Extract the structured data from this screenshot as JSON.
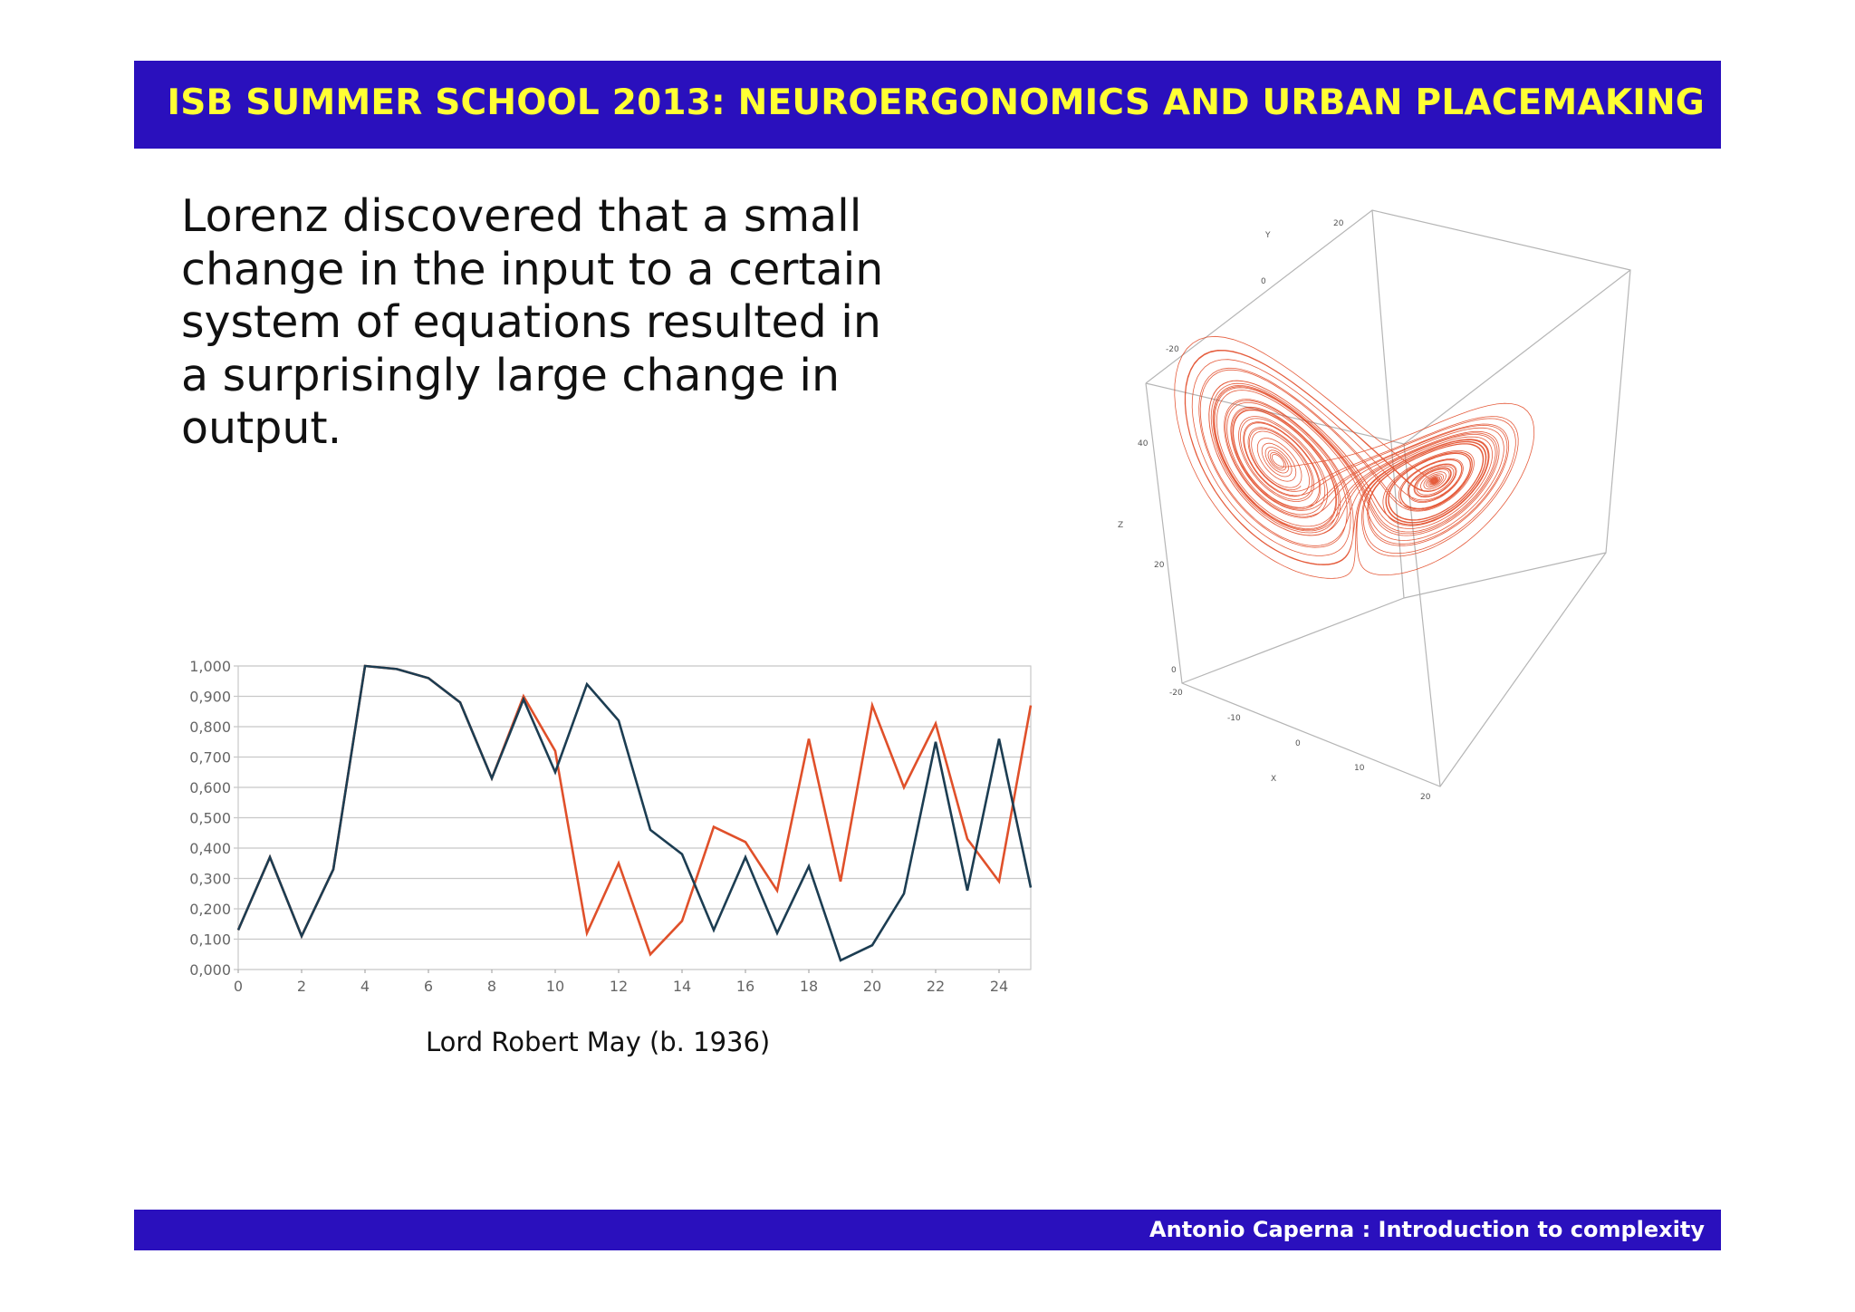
{
  "header": {
    "title": "ISB SUMMER SCHOOL 2013: NEUROERGONOMICS AND URBAN PLACEMAKING"
  },
  "body": {
    "lines": [
      "Lorenz discovered that a small",
      "change in the input to a certain",
      "system of equations resulted in",
      "a surprisingly large change in",
      "output."
    ]
  },
  "caption": "Lord Robert May (b. 1936)",
  "footer": {
    "text": "Antonio Caperna : Introduction to complexity"
  },
  "colors": {
    "bar": "#2a10bd",
    "title": "#ffff33",
    "series_dark": "#1c3d52",
    "series_red": "#e0502a",
    "grid": "#c8c8c8",
    "attractor": "#e0401a"
  },
  "lorenz_ticks": {
    "y": [
      "Y",
      "20",
      "0",
      "-20"
    ],
    "z": [
      "40",
      "20",
      "0",
      "Z"
    ],
    "x": [
      "-20",
      "-10",
      "0",
      "10",
      "20",
      "X"
    ]
  },
  "chart_data": {
    "type": "line",
    "x": [
      0,
      1,
      2,
      3,
      4,
      5,
      6,
      7,
      8,
      9,
      10,
      11,
      12,
      13,
      14,
      15,
      16,
      17,
      18,
      19,
      20,
      21,
      22,
      23,
      24,
      25
    ],
    "xticks": [
      "0",
      "2",
      "4",
      "6",
      "8",
      "10",
      "12",
      "14",
      "16",
      "18",
      "20",
      "22",
      "24"
    ],
    "yticks": [
      "0,000",
      "0,100",
      "0,200",
      "0,300",
      "0,400",
      "0,500",
      "0,600",
      "0,700",
      "0,800",
      "0,900",
      "1,000"
    ],
    "ylim": [
      0,
      1
    ],
    "xlim": [
      0,
      25
    ],
    "grid": true,
    "series": [
      {
        "values": [
          0.13,
          0.37,
          0.11,
          0.33,
          1.0,
          0.99,
          0.96,
          0.88,
          0.63,
          0.89,
          0.65,
          0.94,
          0.82,
          0.46,
          0.38,
          0.13,
          0.37,
          0.12,
          0.34,
          0.03,
          0.08,
          0.25,
          0.75,
          0.26,
          0.76,
          0.27
        ]
      },
      {
        "values": [
          0.13,
          0.37,
          0.11,
          0.33,
          1.0,
          0.99,
          0.96,
          0.88,
          0.63,
          0.9,
          0.72,
          0.12,
          0.35,
          0.05,
          0.16,
          0.47,
          0.42,
          0.26,
          0.76,
          0.29,
          0.87,
          0.6,
          0.81,
          0.43,
          0.29,
          0.87
        ]
      }
    ]
  }
}
